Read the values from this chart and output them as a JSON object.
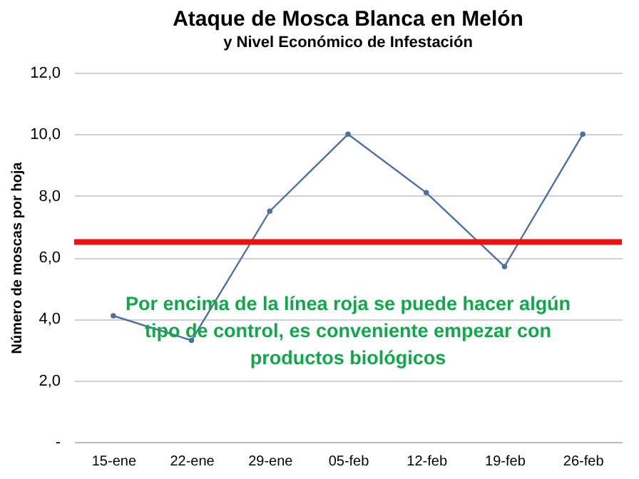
{
  "chart_data": {
    "type": "line",
    "title": "Ataque de Mosca Blanca en Melón",
    "subtitle": "y Nivel Económico de Infestación",
    "ylabel": "Número de moscas por hoja",
    "categories": [
      "15-ene",
      "22-ene",
      "29-ene",
      "05-feb",
      "12-feb",
      "19-feb",
      "26-feb"
    ],
    "series": [
      {
        "color": "#4f6fa3",
        "values": [
          4.1,
          3.3,
          7.5,
          10.0,
          8.1,
          5.7,
          10.0
        ]
      }
    ],
    "ylim": [
      0,
      12
    ],
    "yticks": [
      {
        "value": 0,
        "label": "-"
      },
      {
        "value": 2,
        "label": "2,0"
      },
      {
        "value": 4,
        "label": "4,0"
      },
      {
        "value": 6,
        "label": "6,0"
      },
      {
        "value": 8,
        "label": "8,0"
      },
      {
        "value": 10,
        "label": "10,0"
      },
      {
        "value": 12,
        "label": "12,0"
      }
    ],
    "grid": "y",
    "marker": "circle",
    "line_style": "solid",
    "ref_lines": [
      {
        "axis": "y",
        "value": 6.5,
        "color": "#ee1111"
      }
    ],
    "annotations": [
      "Por encima de la línea roja se puede hacer algún tipo de control, es conveniente empezar con productos biológicos"
    ]
  }
}
